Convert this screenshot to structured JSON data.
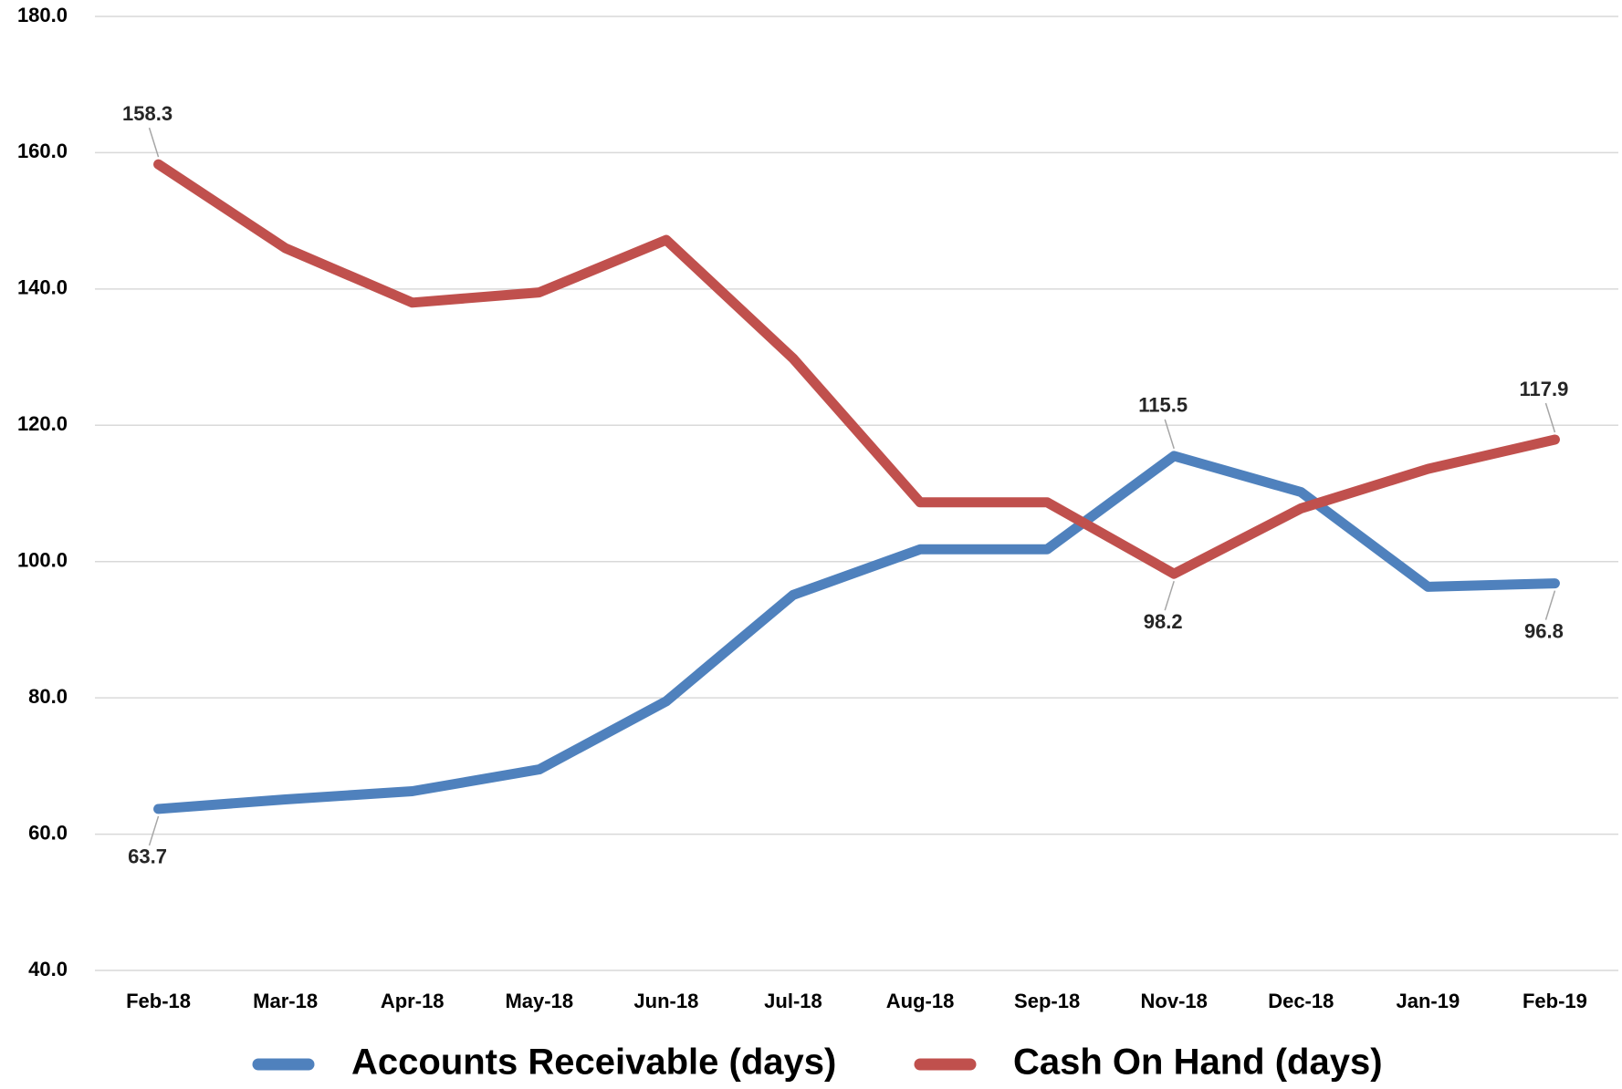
{
  "chart_data": {
    "type": "line",
    "categories": [
      "Feb-18",
      "Mar-18",
      "Apr-18",
      "May-18",
      "Jun-18",
      "Jul-18",
      "Aug-18",
      "Sep-18",
      "Nov-18",
      "Dec-18",
      "Jan-19",
      "Feb-19"
    ],
    "series": [
      {
        "name": "Accounts Receivable (days)",
        "color": "#4f81bd",
        "values": [
          63.7,
          65.1,
          66.3,
          69.5,
          79.5,
          95.1,
          101.8,
          101.8,
          115.5,
          110.2,
          96.3,
          96.8
        ],
        "value_labels": [
          "63.7",
          null,
          null,
          null,
          null,
          null,
          null,
          null,
          "115.5",
          null,
          null,
          "96.8"
        ]
      },
      {
        "name": "Cash On Hand (days)",
        "color": "#c0504d",
        "values": [
          158.3,
          146.0,
          138.0,
          139.5,
          147.2,
          129.8,
          108.7,
          108.7,
          98.2,
          107.8,
          113.6,
          117.9
        ],
        "value_labels": [
          "158.3",
          null,
          null,
          null,
          null,
          null,
          null,
          null,
          "98.2",
          null,
          null,
          "117.9"
        ]
      }
    ],
    "ylim": [
      40,
      180
    ],
    "yticks": [
      {
        "value": 40,
        "label": "40.0"
      },
      {
        "value": 60,
        "label": "60.0"
      },
      {
        "value": 80,
        "label": "80.0"
      },
      {
        "value": 100,
        "label": "100.0"
      },
      {
        "value": 120,
        "label": "120.0"
      },
      {
        "value": 140,
        "label": "140.0"
      },
      {
        "value": 160,
        "label": "160.0"
      },
      {
        "value": 180,
        "label": "180.0"
      }
    ],
    "grid": true,
    "legend": "bottom"
  }
}
